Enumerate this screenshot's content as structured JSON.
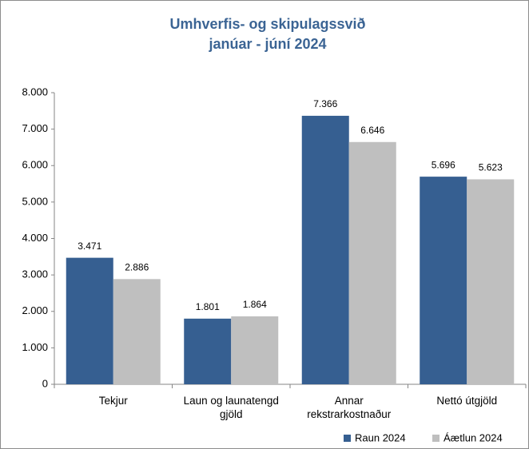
{
  "chart_data": {
    "type": "bar",
    "title": "Umhverfis- og skipulagssvið",
    "subtitle": "janúar - júní 2024",
    "categories": [
      "Tekjur",
      "Laun og launatengd gjöld",
      "Annar rekstrarkostnaður",
      "Nettó útgjöld"
    ],
    "series": [
      {
        "name": "Raun 2024",
        "color": "#365f91",
        "values": [
          3471,
          1801,
          7366,
          5696
        ],
        "value_labels": [
          "3.471",
          "1.801",
          "7.366",
          "5.696"
        ]
      },
      {
        "name": "Áætlun 2024",
        "color": "#bfbfbf",
        "values": [
          2886,
          1864,
          6646,
          5623
        ],
        "value_labels": [
          "2.886",
          "1.864",
          "6.646",
          "5.623"
        ]
      }
    ],
    "ylim": [
      0,
      8000
    ],
    "yticks": [
      {
        "value": 0,
        "label": "0"
      },
      {
        "value": 1000,
        "label": "1.000"
      },
      {
        "value": 2000,
        "label": "2.000"
      },
      {
        "value": 3000,
        "label": "3.000"
      },
      {
        "value": 4000,
        "label": "4.000"
      },
      {
        "value": 5000,
        "label": "5.000"
      },
      {
        "value": 6000,
        "label": "6.000"
      },
      {
        "value": 7000,
        "label": "7.000"
      },
      {
        "value": 8000,
        "label": "8.000"
      }
    ],
    "grid": false,
    "legend": "bottom-right"
  }
}
